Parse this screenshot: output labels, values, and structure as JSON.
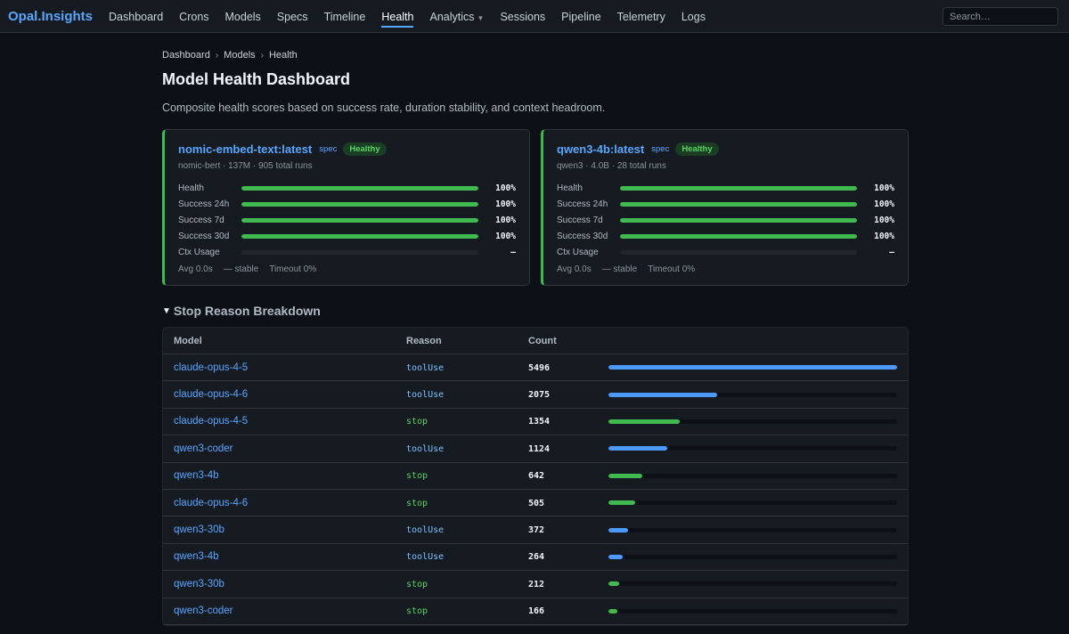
{
  "nav": {
    "brand": "Opal.Insights",
    "items": [
      {
        "label": "Dashboard",
        "active": false,
        "dropdown": false
      },
      {
        "label": "Crons",
        "active": false,
        "dropdown": false
      },
      {
        "label": "Models",
        "active": false,
        "dropdown": false
      },
      {
        "label": "Specs",
        "active": false,
        "dropdown": false
      },
      {
        "label": "Timeline",
        "active": false,
        "dropdown": false
      },
      {
        "label": "Health",
        "active": true,
        "dropdown": false
      },
      {
        "label": "Analytics",
        "active": false,
        "dropdown": true
      },
      {
        "label": "Sessions",
        "active": false,
        "dropdown": false
      },
      {
        "label": "Pipeline",
        "active": false,
        "dropdown": false
      },
      {
        "label": "Telemetry",
        "active": false,
        "dropdown": false
      },
      {
        "label": "Logs",
        "active": false,
        "dropdown": false
      }
    ],
    "search_placeholder": "Search…"
  },
  "breadcrumb": [
    "Dashboard",
    "Models",
    "Health"
  ],
  "page": {
    "title": "Model Health Dashboard",
    "subtitle": "Composite health scores based on success rate, duration stability, and context headroom."
  },
  "cards": [
    {
      "title": "nomic-embed-text:latest",
      "tag": "spec",
      "badge": "Healthy",
      "meta": "nomic-bert · 137M · 905 total runs",
      "metrics": [
        {
          "label": "Health",
          "value": 100,
          "display": "100%"
        },
        {
          "label": "Success 24h",
          "value": 100,
          "display": "100%"
        },
        {
          "label": "Success 7d",
          "value": 100,
          "display": "100%"
        },
        {
          "label": "Success 30d",
          "value": 100,
          "display": "100%"
        },
        {
          "label": "Ctx Usage",
          "value": 0,
          "display": "—"
        }
      ],
      "footer": [
        "Avg 0.0s",
        "— stable",
        "Timeout 0%"
      ]
    },
    {
      "title": "qwen3-4b:latest",
      "tag": "spec",
      "badge": "Healthy",
      "meta": "qwen3 · 4.0B · 28 total runs",
      "metrics": [
        {
          "label": "Health",
          "value": 100,
          "display": "100%"
        },
        {
          "label": "Success 24h",
          "value": 100,
          "display": "100%"
        },
        {
          "label": "Success 7d",
          "value": 100,
          "display": "100%"
        },
        {
          "label": "Success 30d",
          "value": 100,
          "display": "100%"
        },
        {
          "label": "Ctx Usage",
          "value": 0,
          "display": "—"
        }
      ],
      "footer": [
        "Avg 0.0s",
        "— stable",
        "Timeout 0%"
      ]
    }
  ],
  "stop_reasons": {
    "title": "Stop Reason Breakdown",
    "columns": [
      "Model",
      "Reason",
      "Count",
      ""
    ],
    "colors": {
      "toolUse": "#4c9aff",
      "stop": "#3fb950"
    },
    "rows": [
      {
        "model": "claude-opus-4-5",
        "reason": "toolUse",
        "count": 5496
      },
      {
        "model": "claude-opus-4-6",
        "reason": "toolUse",
        "count": 2075
      },
      {
        "model": "claude-opus-4-5",
        "reason": "stop",
        "count": 1354
      },
      {
        "model": "qwen3-coder",
        "reason": "toolUse",
        "count": 1124
      },
      {
        "model": "qwen3-4b",
        "reason": "stop",
        "count": 642
      },
      {
        "model": "claude-opus-4-6",
        "reason": "stop",
        "count": 505
      },
      {
        "model": "qwen3-30b",
        "reason": "toolUse",
        "count": 372
      },
      {
        "model": "qwen3-4b",
        "reason": "toolUse",
        "count": 264
      },
      {
        "model": "qwen3-30b",
        "reason": "stop",
        "count": 212
      },
      {
        "model": "qwen3-coder",
        "reason": "stop",
        "count": 166
      }
    ]
  }
}
